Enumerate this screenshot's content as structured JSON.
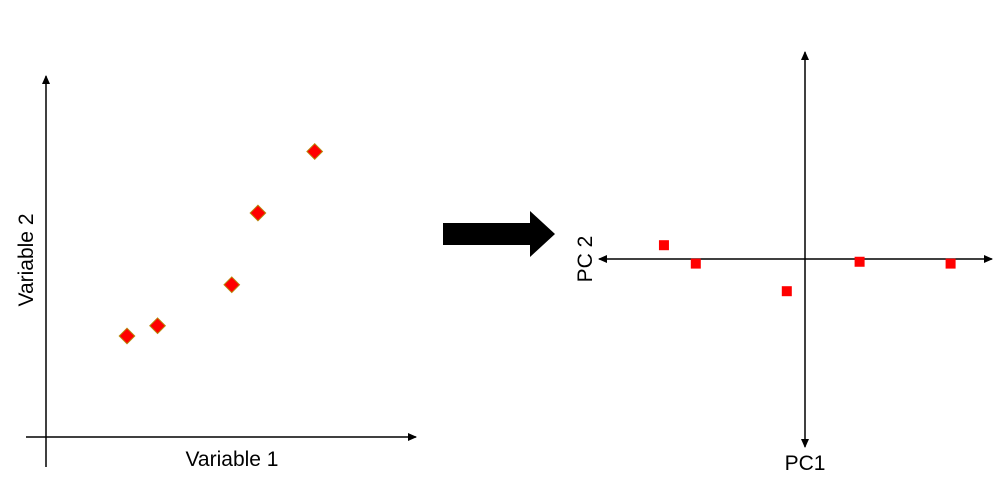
{
  "colors": {
    "point_fill": "#ff0000",
    "point_stroke": "#b8860b",
    "axis": "#000000",
    "arrow": "#000000"
  },
  "left_plot": {
    "x_label": "Variable 1",
    "y_label": "Variable 2",
    "marker": "diamond",
    "points": [
      {
        "x": 1.0,
        "y": 1.0
      },
      {
        "x": 1.35,
        "y": 1.1
      },
      {
        "x": 2.2,
        "y": 1.5
      },
      {
        "x": 2.5,
        "y": 2.2
      },
      {
        "x": 3.15,
        "y": 2.8
      }
    ]
  },
  "transform_arrow": {
    "icon": "right-arrow-icon"
  },
  "right_plot": {
    "x_label": "PC1",
    "y_label": "PC 2",
    "marker": "square",
    "points": [
      {
        "x": -1.55,
        "y": 0.15
      },
      {
        "x": -1.2,
        "y": -0.05
      },
      {
        "x": -0.2,
        "y": -0.35
      },
      {
        "x": 0.6,
        "y": -0.03
      },
      {
        "x": 1.6,
        "y": -0.05
      }
    ]
  }
}
